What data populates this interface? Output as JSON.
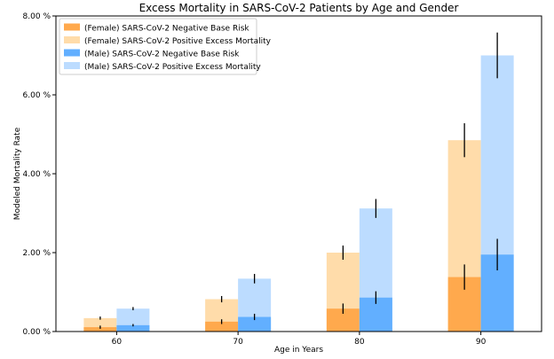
{
  "chart_data": {
    "type": "bar",
    "stacked": true,
    "title": "Excess Mortality in SARS-CoV-2 Patients by Age and Gender",
    "xlabel": "Age in Years",
    "ylabel": "Modeled Mortality Rate",
    "categories": [
      "60",
      "70",
      "80",
      "90"
    ],
    "ylim": [
      0,
      8
    ],
    "yticks": [
      0,
      2,
      4,
      6,
      8
    ],
    "ytick_labels": [
      "0.00 %",
      "2.00 %",
      "4.00 %",
      "6.00 %",
      "8.00 %"
    ],
    "legend_position": "top-left",
    "groups": [
      {
        "name": "Female",
        "base": {
          "name": "(Female) SARS-CoV-2 Negative Base Risk",
          "color": "#ffa94d",
          "values": [
            0.11,
            0.25,
            0.58,
            1.38
          ],
          "err": [
            0.04,
            0.06,
            0.13,
            0.32
          ]
        },
        "excess": {
          "name": "(Female) SARS-CoV-2 Positive Excess Mortality",
          "color": "#ffdcaa",
          "totals": [
            0.34,
            0.82,
            2.0,
            4.85
          ],
          "err": [
            0.04,
            0.08,
            0.18,
            0.43
          ]
        }
      },
      {
        "name": "Male",
        "base": {
          "name": "(Male) SARS-CoV-2 Negative Base Risk",
          "color": "#62afff",
          "values": [
            0.16,
            0.37,
            0.86,
            1.95
          ],
          "err": [
            0.03,
            0.08,
            0.16,
            0.4
          ]
        },
        "excess": {
          "name": "(Male) SARS-CoV-2 Positive Excess Mortality",
          "color": "#bcdcff",
          "totals": [
            0.58,
            1.34,
            3.12,
            7.0
          ],
          "err": [
            0.04,
            0.12,
            0.24,
            0.58
          ]
        }
      }
    ]
  }
}
